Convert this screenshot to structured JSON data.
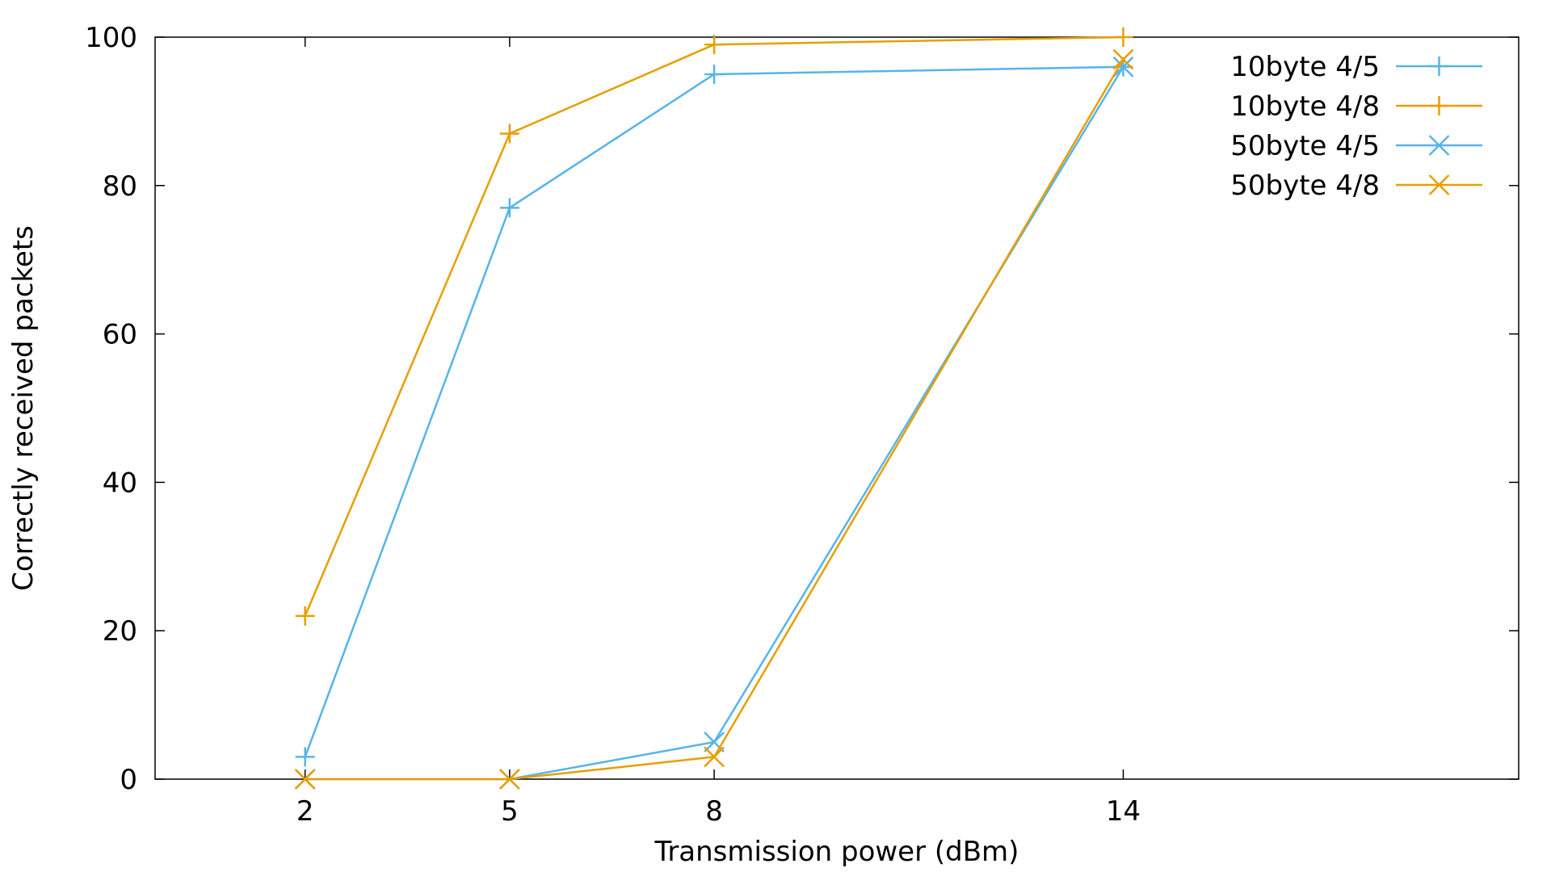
{
  "chart_data": {
    "type": "line",
    "title": "",
    "xlabel": "Transmission power (dBm)",
    "ylabel": "Correctly received packets",
    "x": [
      2,
      5,
      8,
      14
    ],
    "xlim": [
      -0.2,
      19.8
    ],
    "ylim": [
      0,
      100
    ],
    "xticks": [
      2,
      5,
      8,
      14
    ],
    "yticks": [
      0,
      20,
      40,
      60,
      80,
      100
    ],
    "grid": false,
    "legend_position": "top-right",
    "series": [
      {
        "name": "10byte 4/5",
        "values": [
          3,
          77,
          95,
          96
        ],
        "color": "#56b4e9",
        "marker": "plus"
      },
      {
        "name": "10byte 4/8",
        "values": [
          22,
          87,
          99,
          100
        ],
        "color": "#e69f00",
        "marker": "plus"
      },
      {
        "name": "50byte 4/5",
        "values": [
          0,
          0,
          5,
          96
        ],
        "color": "#56b4e9",
        "marker": "cross"
      },
      {
        "name": "50byte 4/8",
        "values": [
          0,
          0,
          3,
          97
        ],
        "color": "#e69f00",
        "marker": "cross"
      }
    ]
  }
}
